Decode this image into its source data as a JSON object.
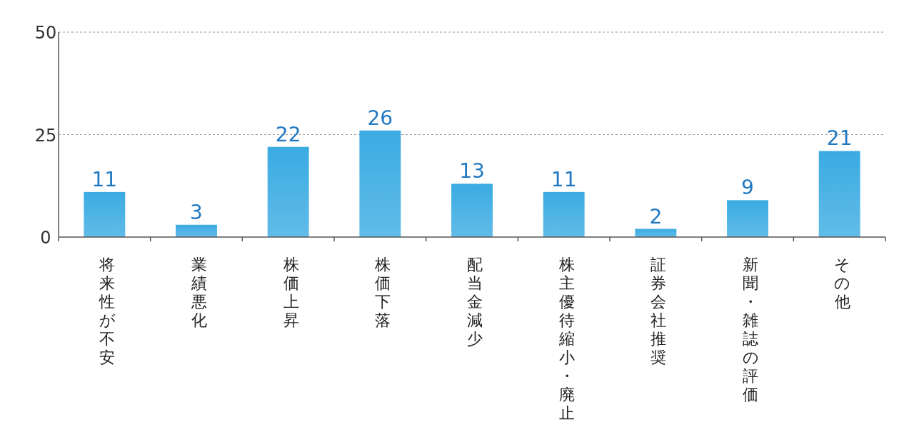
{
  "chart_data": {
    "type": "bar",
    "categories": [
      "将来性が不安",
      "業績悪化",
      "株価上昇",
      "株価下落",
      "配当金減少",
      "株主優待縮小・廃止",
      "証券会社推奨",
      "新聞・雑誌の評価",
      "その他"
    ],
    "values": [
      11,
      3,
      22,
      26,
      13,
      11,
      2,
      9,
      21
    ],
    "color": "#3aabe2",
    "ylim": [
      0,
      50
    ],
    "yticks": [
      0,
      25,
      50
    ],
    "grid": "y",
    "data_labels": true
  }
}
